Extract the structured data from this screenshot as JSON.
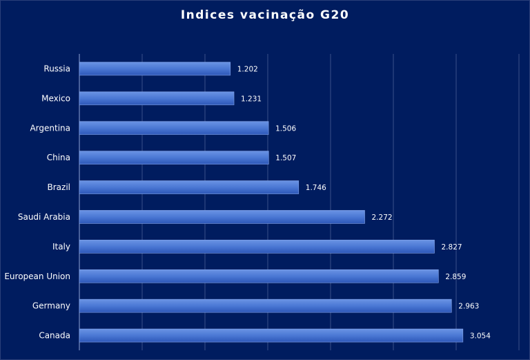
{
  "chart_data": {
    "type": "bar",
    "orientation": "horizontal",
    "title": "Indices vacinação  G20",
    "categories": [
      "Russia",
      "Mexico",
      "Argentina",
      "China",
      "Brazil",
      "Saudi Arabia",
      "Italy",
      "European Union",
      "Germany",
      "Canada"
    ],
    "values": [
      1.202,
      1.231,
      1.506,
      1.507,
      1.746,
      2.272,
      2.827,
      2.859,
      2.963,
      3.054
    ],
    "value_labels": [
      "1.202",
      "1.231",
      "1.506",
      "1.507",
      "1.746",
      "2.272",
      "2.827",
      "2.859",
      "2.963",
      "3.054"
    ],
    "xlim": [
      0,
      3.5
    ],
    "grid": true,
    "legend": "none",
    "colors": {
      "background": "#001c5f",
      "bar_light": "#5b86dc",
      "bar_dark": "#2f5bbf",
      "grid": "#3a4f8a",
      "text": "#ffffff"
    }
  }
}
